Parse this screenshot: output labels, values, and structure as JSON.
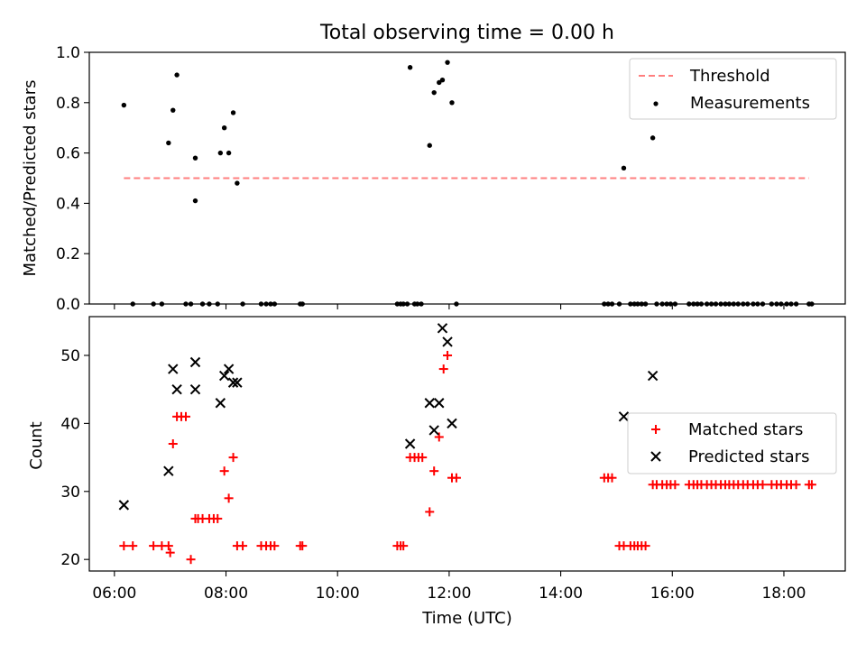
{
  "figure_title": "Total observing time = 0.00 h",
  "x_axis": {
    "label": "Time (UTC)",
    "ticks": [
      {
        "value": 6,
        "label": "06:00"
      },
      {
        "value": 8,
        "label": "08:00"
      },
      {
        "value": 10,
        "label": "10:00"
      },
      {
        "value": 12,
        "label": "12:00"
      },
      {
        "value": 14,
        "label": "14:00"
      },
      {
        "value": 16,
        "label": "16:00"
      },
      {
        "value": 18,
        "label": "18:00"
      }
    ]
  },
  "colors": {
    "threshold": "#ff7f7f",
    "measurements": "#000000",
    "matched": "#ff0000",
    "predicted": "#000000"
  },
  "chart_data": [
    {
      "type": "scatter",
      "panel": "top",
      "title": "Total observing time = 0.00 h",
      "xlabel": "",
      "ylabel": "Matched/Predicted stars",
      "xlim_hours": [
        5.55,
        19.1
      ],
      "ylim": [
        0,
        1.0
      ],
      "yticks": [
        {
          "value": 0.0,
          "label": "0.0"
        },
        {
          "value": 0.2,
          "label": "0.2"
        },
        {
          "value": 0.4,
          "label": "0.4"
        },
        {
          "value": 0.6,
          "label": "0.6"
        },
        {
          "value": 0.8,
          "label": "0.8"
        },
        {
          "value": 1.0,
          "label": "1.0"
        }
      ],
      "legend_position": "top-right",
      "threshold": {
        "name": "Threshold",
        "value": 0.5,
        "x_range_hours": [
          6.17,
          18.45
        ]
      },
      "series": [
        {
          "name": "Measurements",
          "marker": "dot",
          "x_hours": [
            6.17,
            6.33,
            6.7,
            6.85,
            6.97,
            7.05,
            7.12,
            7.28,
            7.37,
            7.45,
            7.45,
            7.58,
            7.7,
            7.85,
            7.9,
            7.97,
            8.05,
            8.13,
            8.2,
            8.3,
            8.63,
            8.72,
            8.8,
            8.87,
            9.33,
            9.37,
            11.07,
            11.13,
            11.18,
            11.25,
            11.3,
            11.38,
            11.43,
            11.5,
            11.65,
            11.73,
            11.82,
            11.88,
            11.97,
            12.05,
            12.13,
            14.78,
            14.85,
            14.92,
            15.05,
            15.13,
            15.25,
            15.32,
            15.38,
            15.45,
            15.52,
            15.65,
            15.72,
            15.82,
            15.9,
            15.97,
            16.05,
            16.3,
            16.38,
            16.45,
            16.52,
            16.62,
            16.7,
            16.78,
            16.87,
            16.95,
            17.02,
            17.1,
            17.18,
            17.27,
            17.35,
            17.45,
            17.53,
            17.62,
            17.78,
            17.87,
            17.95,
            18.05,
            18.13,
            18.22,
            18.45,
            18.5
          ],
          "y": [
            0.79,
            0.0,
            0.0,
            0.0,
            0.64,
            0.77,
            0.91,
            0.0,
            0.0,
            0.41,
            0.58,
            0.0,
            0.0,
            0.0,
            0.6,
            0.7,
            0.6,
            0.76,
            0.48,
            0.0,
            0.0,
            0.0,
            0.0,
            0.0,
            0.0,
            0.0,
            0.0,
            0.0,
            0.0,
            0.0,
            0.94,
            0.0,
            0.0,
            0.0,
            0.63,
            0.84,
            0.88,
            0.89,
            0.96,
            0.8,
            0.0,
            0.0,
            0.0,
            0.0,
            0.0,
            0.54,
            0.0,
            0.0,
            0.0,
            0.0,
            0.0,
            0.66,
            0.0,
            0.0,
            0.0,
            0.0,
            0.0,
            0.0,
            0.0,
            0.0,
            0.0,
            0.0,
            0.0,
            0.0,
            0.0,
            0.0,
            0.0,
            0.0,
            0.0,
            0.0,
            0.0,
            0.0,
            0.0,
            0.0,
            0.0,
            0.0,
            0.0,
            0.0,
            0.0,
            0.0,
            0.0,
            0.0
          ]
        }
      ]
    },
    {
      "type": "scatter",
      "panel": "bottom",
      "xlabel": "Time (UTC)",
      "ylabel": "Count",
      "xlim_hours": [
        5.55,
        19.1
      ],
      "ylim": [
        18.3,
        55.7
      ],
      "yticks": [
        {
          "value": 20,
          "label": "20"
        },
        {
          "value": 30,
          "label": "30"
        },
        {
          "value": 40,
          "label": "40"
        },
        {
          "value": 50,
          "label": "50"
        }
      ],
      "legend_position": "center-right",
      "series": [
        {
          "name": "Matched stars",
          "marker": "plus",
          "x_hours": [
            6.17,
            6.33,
            6.7,
            6.85,
            6.97,
            7.0,
            7.05,
            7.12,
            7.2,
            7.28,
            7.37,
            7.45,
            7.5,
            7.58,
            7.7,
            7.78,
            7.85,
            7.97,
            8.05,
            8.13,
            8.2,
            8.3,
            8.63,
            8.72,
            8.8,
            8.87,
            9.33,
            9.37,
            11.07,
            11.13,
            11.18,
            11.3,
            11.38,
            11.45,
            11.52,
            11.65,
            11.73,
            11.82,
            11.9,
            11.97,
            12.05,
            12.13,
            14.78,
            14.85,
            14.92,
            15.05,
            15.13,
            15.25,
            15.32,
            15.38,
            15.45,
            15.52,
            15.65,
            15.72,
            15.82,
            15.9,
            15.97,
            16.05,
            16.3,
            16.38,
            16.45,
            16.52,
            16.62,
            16.7,
            16.78,
            16.87,
            16.95,
            17.02,
            17.1,
            17.18,
            17.27,
            17.35,
            17.45,
            17.53,
            17.62,
            17.78,
            17.87,
            17.95,
            18.05,
            18.13,
            18.22,
            18.45,
            18.5
          ],
          "y": [
            22,
            22,
            22,
            22,
            22,
            21,
            37,
            41,
            41,
            41,
            20,
            26,
            26,
            26,
            26,
            26,
            26,
            33,
            29,
            35,
            22,
            22,
            22,
            22,
            22,
            22,
            22,
            22,
            22,
            22,
            22,
            35,
            35,
            35,
            35,
            27,
            33,
            38,
            48,
            50,
            32,
            32,
            32,
            32,
            32,
            22,
            22,
            22,
            22,
            22,
            22,
            22,
            31,
            31,
            31,
            31,
            31,
            31,
            31,
            31,
            31,
            31,
            31,
            31,
            31,
            31,
            31,
            31,
            31,
            31,
            31,
            31,
            31,
            31,
            31,
            31,
            31,
            31,
            31,
            31,
            31,
            31,
            31
          ]
        },
        {
          "name": "Predicted stars",
          "marker": "x",
          "x_hours": [
            6.17,
            6.97,
            7.05,
            7.12,
            7.45,
            7.45,
            7.9,
            7.97,
            8.05,
            8.13,
            8.2,
            11.3,
            11.65,
            11.73,
            11.82,
            11.88,
            11.97,
            12.05,
            15.13,
            15.65
          ],
          "y": [
            28,
            33,
            48,
            45,
            49,
            45,
            43,
            47,
            48,
            46,
            46,
            37,
            43,
            39,
            43,
            54,
            52,
            40,
            41,
            47
          ]
        }
      ]
    }
  ]
}
